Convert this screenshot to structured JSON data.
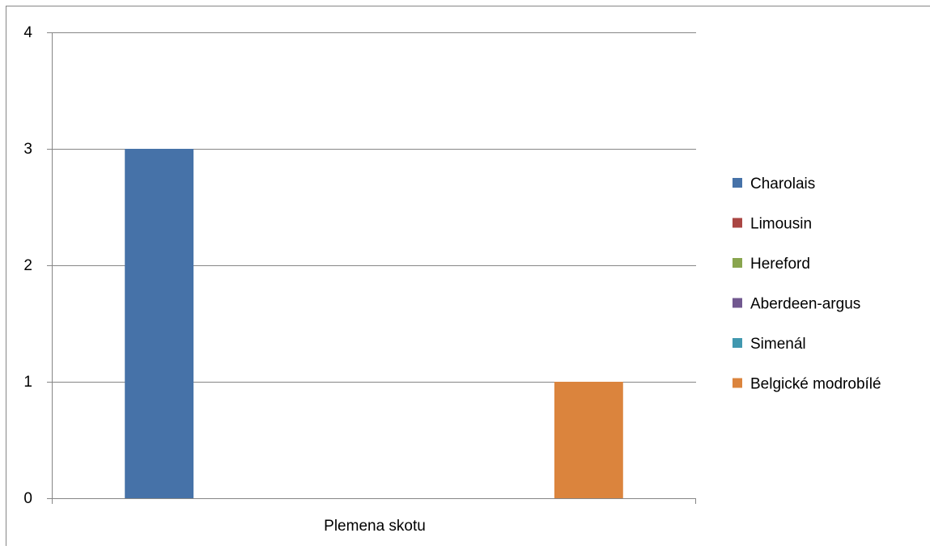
{
  "chart_data": {
    "type": "bar",
    "categories": [
      "Plemena skotu"
    ],
    "xlabel": "Plemena skotu",
    "ylabel": "",
    "title": "",
    "ylim": [
      0,
      4
    ],
    "yticks": [
      "0",
      "1",
      "2",
      "3",
      "4"
    ],
    "grid": true,
    "legend_position": "right",
    "series": [
      {
        "name": "Charolais",
        "values": [
          3
        ],
        "color": "#4672A8"
      },
      {
        "name": "Limousin",
        "values": [
          0
        ],
        "color": "#AA4643"
      },
      {
        "name": "Hereford",
        "values": [
          0
        ],
        "color": "#89A54E"
      },
      {
        "name": "Aberdeen-argus",
        "values": [
          0
        ],
        "color": "#71588F"
      },
      {
        "name": "Simenál",
        "values": [
          0
        ],
        "color": "#4198AF"
      },
      {
        "name": "Belgické modrobílé",
        "values": [
          1
        ],
        "color": "#DB843D"
      }
    ]
  }
}
